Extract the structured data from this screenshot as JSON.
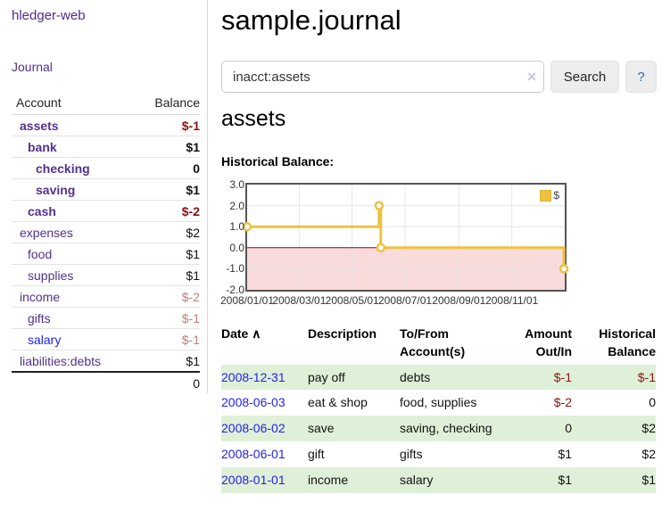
{
  "palette": {
    "link_purple": "#52318f",
    "link_blue": "#2222ee",
    "negative": "#8b1111",
    "negative_muted": "#bf7f7f",
    "row_green": "#dff0d8",
    "chart_line": "#edc240",
    "chart_negative_fill": "#f9dbdb",
    "chart_zero_line": "#8b0000",
    "chart_border": "#545454",
    "chart_grid": "#e6e6e6"
  },
  "sidebar": {
    "brand": "hledger-web",
    "journal_link": "Journal",
    "columns": {
      "account": "Account",
      "balance": "Balance"
    },
    "accounts": [
      {
        "name": "assets",
        "balance": "$-1",
        "indent": 1,
        "bold": true,
        "balance_style": "negative"
      },
      {
        "name": "bank",
        "balance": "$1",
        "indent": 2,
        "bold": true,
        "balance_style": "positive"
      },
      {
        "name": "checking",
        "balance": "0",
        "indent": 3,
        "bold": true,
        "balance_style": "positive"
      },
      {
        "name": "saving",
        "balance": "$1",
        "indent": 3,
        "bold": true,
        "balance_style": "positive"
      },
      {
        "name": "cash",
        "balance": "$-2",
        "indent": 2,
        "bold": true,
        "balance_style": "negative"
      },
      {
        "name": "expenses",
        "balance": "$2",
        "indent": 1,
        "bold": false,
        "balance_style": "positive"
      },
      {
        "name": "food",
        "balance": "$1",
        "indent": 2,
        "bold": false,
        "balance_style": "positive"
      },
      {
        "name": "supplies",
        "balance": "$1",
        "indent": 2,
        "bold": false,
        "balance_style": "positive"
      },
      {
        "name": "income",
        "balance": "$-2",
        "indent": 1,
        "bold": false,
        "balance_style": "negative-muted"
      },
      {
        "name": "gifts",
        "balance": "$-1",
        "indent": 2,
        "bold": false,
        "balance_style": "negative-muted"
      },
      {
        "name": "salary",
        "balance": "$-1",
        "indent": 2,
        "bold": false,
        "balance_style": "negative-muted",
        "link_style": "blue"
      },
      {
        "name": "liabilities:debts",
        "balance": "$1",
        "indent": 1,
        "bold": false,
        "balance_style": "positive"
      }
    ],
    "total": "0"
  },
  "main": {
    "title": "sample.journal",
    "search": {
      "value": "inacct:assets",
      "clear_icon": "×",
      "search_button": "Search",
      "help_button": "?"
    },
    "account_heading": "assets",
    "chart_title": "Historical Balance:"
  },
  "chart_data": {
    "type": "line",
    "title": "Historical Balance:",
    "step": true,
    "legend": [
      {
        "label": "$",
        "color": "#edc240"
      }
    ],
    "legend_position": "top-right",
    "grid": true,
    "x_range": [
      "2008-01-01",
      "2009-01-01"
    ],
    "x_tick_labels": [
      "2008/01/01",
      "2008/03/01",
      "2008/05/01",
      "2008/07/01",
      "2008/09/01",
      "2008/11/01"
    ],
    "y_ticks": [
      3.0,
      2.0,
      1.0,
      0.0,
      -1.0,
      -2.0
    ],
    "ylim": [
      -2,
      3
    ],
    "series": [
      {
        "name": "$",
        "points": [
          {
            "x": "2008-01-01",
            "y": 1
          },
          {
            "x": "2008-06-01",
            "y": 2
          },
          {
            "x": "2008-06-03",
            "y": 0
          },
          {
            "x": "2008-12-31",
            "y": -1
          }
        ]
      }
    ]
  },
  "register": {
    "headers": [
      {
        "label": "Date",
        "sort_indicator": "∧"
      },
      {
        "label": "Description"
      },
      {
        "label": "To/From Account(s)"
      },
      {
        "label": "Amount Out/In"
      },
      {
        "label": "Historical Balance"
      }
    ],
    "rows": [
      {
        "date": "2008-12-31",
        "description": "pay off",
        "accounts": "debts",
        "amount": "$-1",
        "amount_style": "negative",
        "balance": "$-1",
        "balance_style": "negative"
      },
      {
        "date": "2008-06-03",
        "description": "eat & shop",
        "accounts": "food, supplies",
        "amount": "$-2",
        "amount_style": "negative",
        "balance": "0",
        "balance_style": "positive"
      },
      {
        "date": "2008-06-02",
        "description": "save",
        "accounts": "saving, checking",
        "amount": "0",
        "amount_style": "positive",
        "balance": "$2",
        "balance_style": "positive"
      },
      {
        "date": "2008-06-01",
        "description": "gift",
        "accounts": "gifts",
        "amount": "$1",
        "amount_style": "positive",
        "balance": "$2",
        "balance_style": "positive"
      },
      {
        "date": "2008-01-01",
        "description": "income",
        "accounts": "salary",
        "amount": "$1",
        "amount_style": "positive",
        "balance": "$1",
        "balance_style": "positive"
      }
    ]
  }
}
